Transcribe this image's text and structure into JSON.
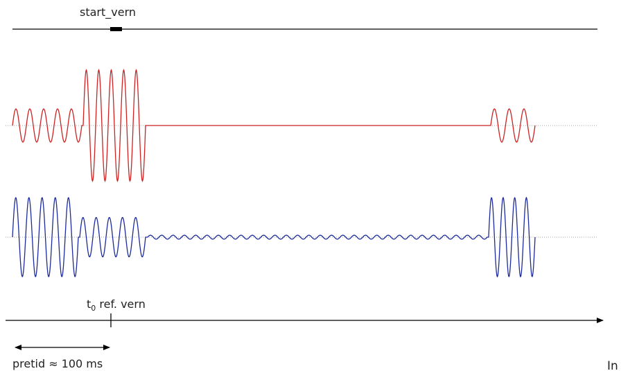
{
  "labels": {
    "start_marker": "start_vern",
    "t0_main": "t",
    "t0_sub": "0",
    "t0_rest": " ref. vern",
    "duration": "pretid ≈ 100 ms",
    "edge_text": "In"
  },
  "colors": {
    "red_signal": "#cc2222",
    "blue_signal": "#1c2a9a",
    "axis": "#000000",
    "baseline": "#888888"
  },
  "signals": {
    "red": {
      "segments": [
        {
          "cycles": 5,
          "amplitude": 0.3
        },
        {
          "cycles": 5,
          "amplitude": 1.0
        },
        {
          "cycles": 0,
          "amplitude": 0.0
        },
        {
          "cycles": 3,
          "amplitude": 0.3
        }
      ]
    },
    "blue": {
      "segments": [
        {
          "cycles": 5,
          "amplitude": 1.0
        },
        {
          "cycles": 5,
          "amplitude": 0.5
        },
        {
          "cycles": 30,
          "amplitude": 0.05
        },
        {
          "cycles": 4,
          "amplitude": 1.0
        }
      ]
    }
  }
}
